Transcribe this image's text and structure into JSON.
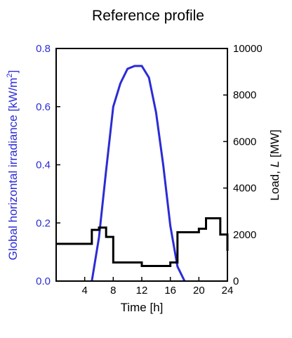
{
  "chart_data": {
    "type": "line",
    "title": "Reference profile",
    "xlabel": "Time [h]",
    "xlim": [
      0,
      24
    ],
    "xticks": [
      4,
      8,
      12,
      16,
      20,
      24
    ],
    "grid": false,
    "legend": "none",
    "y_left": {
      "label_main": "Global horizontal irradiance [kW/m",
      "label_sup": "2",
      "label_end": "]",
      "ylim": [
        0,
        0.8
      ],
      "ticks": [
        "0.0",
        "0.2",
        "0.4",
        "0.6",
        "0.8"
      ],
      "color": "#2b2bd6"
    },
    "y_right": {
      "label_main": "Load, ",
      "label_var": "L",
      "label_end": " [MW]",
      "ylim": [
        0,
        10000
      ],
      "ticks": [
        "0",
        "2000",
        "4000",
        "6000",
        "8000",
        "10000"
      ],
      "color": "#000000"
    },
    "series": [
      {
        "axis": "left",
        "color": "#2b2bd6",
        "style": "line",
        "x": [
          5,
          6,
          7,
          8,
          9,
          10,
          11,
          12,
          13,
          14,
          15,
          16,
          17,
          18
        ],
        "y": [
          0.0,
          0.15,
          0.38,
          0.6,
          0.68,
          0.73,
          0.74,
          0.74,
          0.7,
          0.58,
          0.4,
          0.19,
          0.05,
          0.0
        ]
      },
      {
        "axis": "right",
        "color": "#000000",
        "style": "step",
        "x": [
          0,
          5,
          6,
          7,
          8,
          9,
          10,
          11,
          12,
          13,
          14,
          15,
          16,
          17,
          18,
          19,
          20,
          21,
          22,
          23,
          24
        ],
        "y": [
          1600,
          2200,
          2300,
          1900,
          800,
          800,
          800,
          800,
          650,
          650,
          650,
          650,
          800,
          2100,
          2100,
          2100,
          2250,
          2700,
          2700,
          2000,
          1300
        ]
      }
    ]
  }
}
